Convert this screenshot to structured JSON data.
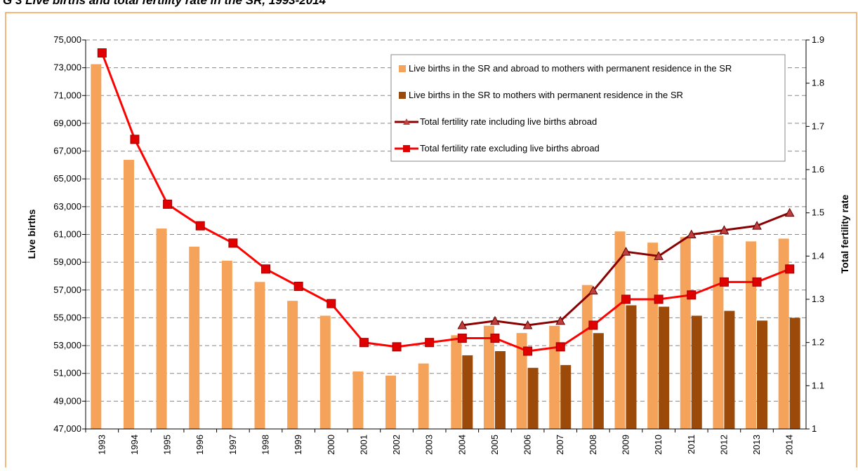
{
  "chart_data": {
    "type": "bar-line",
    "title": "G 3 Live births and total fertility rate in the SR, 1993-2014",
    "y_label": "Live births",
    "y2_label": "Total fertility rate",
    "categories": [
      "1993",
      "1994",
      "1995",
      "1996",
      "1997",
      "1998",
      "1999",
      "2000",
      "2001",
      "2002",
      "2003",
      "2004",
      "2005",
      "2006",
      "2007",
      "2008",
      "2009",
      "2010",
      "2011",
      "2012",
      "2013",
      "2014"
    ],
    "ylim": [
      47000,
      75000
    ],
    "yticks": [
      {
        "value": 47000,
        "label": "47,000"
      },
      {
        "value": 49000,
        "label": "49,000"
      },
      {
        "value": 51000,
        "label": "51,000"
      },
      {
        "value": 53000,
        "label": "53,000"
      },
      {
        "value": 55000,
        "label": "55,000"
      },
      {
        "value": 57000,
        "label": "57,000"
      },
      {
        "value": 59000,
        "label": "59,000"
      },
      {
        "value": 61000,
        "label": "61,000"
      },
      {
        "value": 63000,
        "label": "63,000"
      },
      {
        "value": 65000,
        "label": "65,000"
      },
      {
        "value": 67000,
        "label": "67,000"
      },
      {
        "value": 69000,
        "label": "69,000"
      },
      {
        "value": 71000,
        "label": "71,000"
      },
      {
        "value": 73000,
        "label": "73,000"
      },
      {
        "value": 75000,
        "label": "75,000"
      }
    ],
    "y2lim": [
      1,
      1.9
    ],
    "y2ticks": [
      1,
      1.1,
      1.2,
      1.3,
      1.4,
      1.5,
      1.6,
      1.7,
      1.8,
      1.9
    ],
    "grid": true,
    "legend": "top-right",
    "series": [
      {
        "name": "Live births in the SR and abroad to mothers with permanent residence in the SR",
        "kind": "bar",
        "color": "#f5a35a",
        "values": [
          73256,
          66370,
          61427,
          60123,
          59111,
          57582,
          56223,
          55151,
          51136,
          50841,
          51713,
          53747,
          54430,
          53904,
          54424,
          57360,
          61217,
          60410,
          60813,
          60916,
          60500,
          60700
        ]
      },
      {
        "name": "Live births in the SR to mothers with permanent residence in the SR",
        "kind": "bar",
        "color": "#9c4a0a",
        "values": [
          null,
          null,
          null,
          null,
          null,
          null,
          null,
          null,
          null,
          null,
          null,
          52300,
          52600,
          51400,
          51600,
          53900,
          55900,
          55800,
          55150,
          55500,
          54800,
          55000
        ]
      },
      {
        "name": "Total fertility rate including live births abroad",
        "kind": "line",
        "axis": "y2",
        "color": "#8b0000",
        "marker": "triangle",
        "values": [
          null,
          null,
          null,
          null,
          null,
          null,
          null,
          null,
          null,
          null,
          null,
          1.24,
          1.25,
          1.24,
          1.25,
          1.32,
          1.41,
          1.4,
          1.45,
          1.46,
          1.47,
          1.5
        ]
      },
      {
        "name": "Total fertility rate excluding live births abroad",
        "kind": "line",
        "axis": "y2",
        "color": "#ff0000",
        "marker": "square",
        "values": [
          1.87,
          1.67,
          1.52,
          1.47,
          1.43,
          1.37,
          1.33,
          1.29,
          1.2,
          1.19,
          1.2,
          1.21,
          1.21,
          1.18,
          1.19,
          1.24,
          1.3,
          1.3,
          1.31,
          1.34,
          1.34,
          1.37
        ]
      }
    ]
  }
}
